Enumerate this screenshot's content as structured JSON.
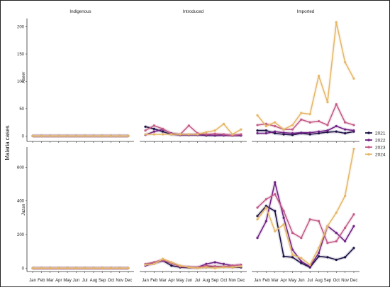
{
  "chart_data": {
    "type": "line",
    "ylabel": "Malaria cases",
    "x": [
      "Jan",
      "Feb",
      "Mar",
      "Apr",
      "May",
      "Jun",
      "Jul",
      "Aug",
      "Sep",
      "Oct",
      "Nov",
      "Dec"
    ],
    "columns": [
      "Indigenous",
      "Introduced",
      "Imported"
    ],
    "rows": [
      "Aseer",
      "Jazan"
    ],
    "legend_position": "right",
    "series_colors": {
      "2021": "#1b0f45",
      "2022": "#6f1f84",
      "2023": "#c35a87",
      "2024": "#e5b868"
    },
    "panels": [
      {
        "row": "Aseer",
        "column": "Indigenous",
        "ylim": [
          -10,
          215
        ],
        "yticks": [
          0,
          50,
          100,
          150,
          200
        ],
        "series": [
          {
            "name": "2021",
            "values": [
              0,
              0,
              0,
              0,
              0,
              0,
              0,
              0,
              0,
              0,
              0,
              0
            ]
          },
          {
            "name": "2022",
            "values": [
              0,
              0,
              0,
              0,
              0,
              0,
              0,
              0,
              0,
              0,
              0,
              0
            ]
          },
          {
            "name": "2023",
            "values": [
              0,
              0,
              0,
              0,
              0,
              0,
              0,
              0,
              0,
              0,
              0,
              0
            ]
          },
          {
            "name": "2024",
            "values": [
              0,
              0,
              0,
              0,
              0,
              0,
              0,
              0,
              0,
              0,
              0,
              0
            ]
          }
        ]
      },
      {
        "row": "Aseer",
        "column": "Introduced",
        "ylim": [
          -10,
          215
        ],
        "yticks": [],
        "series": [
          {
            "name": "2021",
            "values": [
              17,
              13,
              8,
              3,
              2,
              2,
              2,
              1,
              1,
              2,
              1,
              1
            ]
          },
          {
            "name": "2022",
            "values": [
              2,
              8,
              12,
              5,
              2,
              2,
              2,
              2,
              1,
              1,
              1,
              1
            ]
          },
          {
            "name": "2023",
            "values": [
              10,
              19,
              13,
              4,
              3,
              19,
              5,
              3,
              4,
              3,
              1,
              3
            ]
          },
          {
            "name": "2024",
            "values": [
              3,
              3,
              3,
              3,
              3,
              3,
              3,
              7,
              10,
              22,
              3,
              12
            ]
          }
        ]
      },
      {
        "row": "Aseer",
        "column": "Imported",
        "ylim": [
          -10,
          215
        ],
        "yticks": [],
        "series": [
          {
            "name": "2021",
            "values": [
              10,
              10,
              5,
              3,
              2,
              5,
              3,
              5,
              7,
              8,
              5,
              8
            ]
          },
          {
            "name": "2022",
            "values": [
              5,
              5,
              8,
              6,
              5,
              6,
              6,
              8,
              10,
              18,
              12,
              10
            ]
          },
          {
            "name": "2023",
            "values": [
              20,
              22,
              18,
              12,
              12,
              30,
              25,
              27,
              20,
              58,
              25,
              20
            ]
          },
          {
            "name": "2024",
            "values": [
              38,
              18,
              25,
              12,
              20,
              42,
              40,
              110,
              62,
              208,
              135,
              105
            ]
          }
        ]
      },
      {
        "row": "Jazan",
        "column": "Indigenous",
        "ylim": [
          -20,
          720
        ],
        "yticks": [
          0,
          200,
          400,
          600
        ],
        "series": [
          {
            "name": "2021",
            "values": [
              0,
              0,
              0,
              0,
              0,
              0,
              0,
              0,
              0,
              0,
              0,
              0
            ]
          },
          {
            "name": "2022",
            "values": [
              0,
              0,
              0,
              0,
              0,
              0,
              0,
              0,
              0,
              0,
              0,
              0
            ]
          },
          {
            "name": "2023",
            "values": [
              0,
              0,
              0,
              0,
              0,
              0,
              0,
              0,
              0,
              0,
              0,
              0
            ]
          },
          {
            "name": "2024",
            "values": [
              0,
              0,
              0,
              0,
              0,
              0,
              0,
              0,
              0,
              0,
              0,
              0
            ]
          }
        ]
      },
      {
        "row": "Jazan",
        "column": "Introduced",
        "ylim": [
          -20,
          720
        ],
        "yticks": [],
        "series": [
          {
            "name": "2021",
            "values": [
              20,
              30,
              45,
              15,
              5,
              3,
              2,
              5,
              10,
              8,
              5,
              5
            ]
          },
          {
            "name": "2022",
            "values": [
              15,
              30,
              45,
              30,
              10,
              5,
              5,
              25,
              35,
              25,
              15,
              20
            ]
          },
          {
            "name": "2023",
            "values": [
              25,
              35,
              50,
              30,
              10,
              8,
              5,
              15,
              10,
              10,
              15,
              20
            ]
          },
          {
            "name": "2024",
            "values": [
              20,
              25,
              55,
              35,
              15,
              5,
              0,
              5,
              0,
              5,
              5,
              10
            ]
          }
        ]
      },
      {
        "row": "Jazan",
        "column": "Imported",
        "ylim": [
          -20,
          720
        ],
        "yticks": [],
        "series": [
          {
            "name": "2021",
            "values": [
              310,
              370,
              340,
              70,
              65,
              30,
              5,
              70,
              65,
              50,
              65,
              120
            ]
          },
          {
            "name": "2022",
            "values": [
              180,
              280,
              510,
              300,
              110,
              40,
              10,
              90,
              250,
              210,
              160,
              250
            ]
          },
          {
            "name": "2023",
            "values": [
              360,
              410,
              440,
              340,
              210,
              180,
              290,
              280,
              150,
              160,
              240,
              320
            ]
          },
          {
            "name": "2024",
            "values": [
              290,
              360,
              220,
              260,
              80,
              60,
              20,
              120,
              250,
              330,
              430,
              710
            ]
          }
        ]
      }
    ]
  }
}
